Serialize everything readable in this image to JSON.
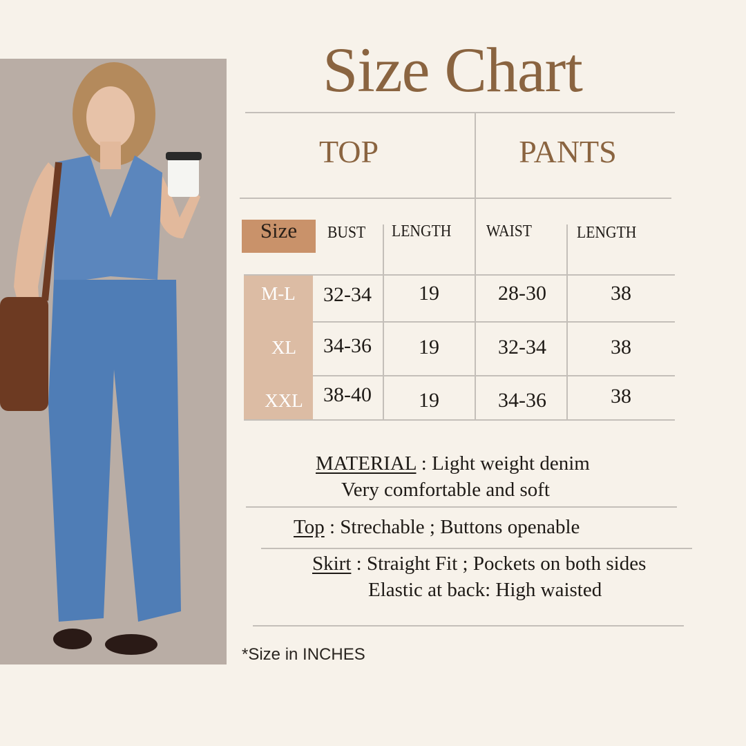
{
  "title": "Size Chart",
  "sections": {
    "top": "TOP",
    "pants": "PANTS"
  },
  "columns": [
    "Size",
    "BUST",
    "LENGTH",
    "WAIST",
    "LENGTH"
  ],
  "rows": [
    {
      "size": "M-L",
      "bust": "32-34",
      "top_length": "19",
      "waist": "28-30",
      "pants_length": "38"
    },
    {
      "size": "XL",
      "bust": "34-36",
      "top_length": "19",
      "waist": "32-34",
      "pants_length": "38"
    },
    {
      "size": "XXL",
      "bust": "38-40",
      "top_length": "19",
      "waist": "34-36",
      "pants_length": "38"
    }
  ],
  "details": {
    "material_label": "MATERIAL",
    "material_text": " :  Light weight denim",
    "material_line2": "Very comfortable and soft",
    "top_label": "Top",
    "top_text": " : Strechable ; Buttons openable",
    "skirt_label": "Skirt",
    "skirt_text": " : Straight Fit ; Pockets on both sides",
    "skirt_line2": "Elastic at back: High waisted"
  },
  "footnote": "*Size in INCHES",
  "colors": {
    "title": "#8a6440",
    "size_header": "#c9926a",
    "size_cells": "#dcbca4",
    "background": "#f7f2ea",
    "denim": "#5b86bd"
  }
}
